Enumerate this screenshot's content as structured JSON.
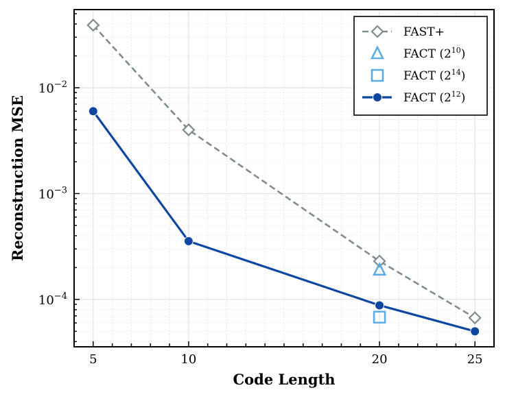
{
  "chart_data": {
    "type": "line",
    "title": "",
    "xlabel": "Code Length",
    "ylabel": "Reconstruction MSE",
    "xlim": [
      4,
      26
    ],
    "ylim": [
      3.57e-05,
      0.0547
    ],
    "yscale": "log",
    "grid": true,
    "legend_position": "top-right",
    "x_ticks": [
      5,
      10,
      20,
      25
    ],
    "x_tick_labels": [
      "5",
      "10",
      "20",
      "25"
    ],
    "y_ticks": [
      0.01,
      0.001,
      0.0001
    ],
    "y_tick_labels": [
      {
        "base": "10",
        "exp": "−2"
      },
      {
        "base": "10",
        "exp": "−3"
      },
      {
        "base": "10",
        "exp": "−4"
      }
    ],
    "series": [
      {
        "name": "FAST+",
        "name_base": "FAST+",
        "name_exp": "",
        "color": "#7f8c8d",
        "marker": "diamond-open",
        "line": "dashed",
        "x": [
          5,
          10,
          20,
          25
        ],
        "y": [
          0.039,
          0.004,
          0.00023,
          6.7e-05
        ]
      },
      {
        "name": "FACT (2^10)",
        "name_base": "FACT (2",
        "name_exp": "10",
        "color": "#5dade2",
        "marker": "triangle-open",
        "line": "none",
        "x": [
          20
        ],
        "y": [
          0.00019
        ]
      },
      {
        "name": "FACT (2^14)",
        "name_base": "FACT (2",
        "name_exp": "14",
        "color": "#5dade2",
        "marker": "square-open",
        "line": "none",
        "x": [
          20
        ],
        "y": [
          6.8e-05
        ]
      },
      {
        "name": "FACT (2^12)",
        "name_base": "FACT (2",
        "name_exp": "12",
        "color": "#0d47a1",
        "marker": "circle",
        "line": "solid",
        "x": [
          5,
          10,
          20,
          25
        ],
        "y": [
          0.006,
          0.000355,
          8.8e-05,
          5e-05
        ]
      }
    ]
  }
}
